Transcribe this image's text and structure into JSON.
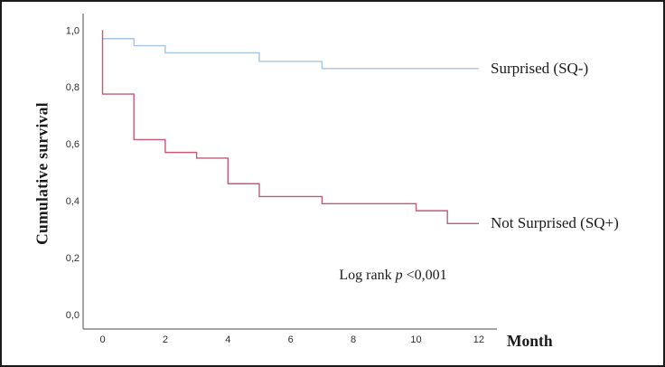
{
  "figure": {
    "y_axis_title": "Cumulative survival",
    "x_axis_title": "Month",
    "log_rank": {
      "prefix": "Log rank",
      "p_symbol": "p",
      "value": "<0,001"
    }
  },
  "chart_data": {
    "type": "line",
    "subtype": "kaplan-meier-step",
    "title": "",
    "xlabel": "Month",
    "ylabel": "Cumulative survival",
    "xlim": [
      0,
      12
    ],
    "ylim": [
      0.0,
      1.0
    ],
    "grid": false,
    "legend_position": "right-of-line-end",
    "x_tick_values": [
      0,
      2,
      4,
      6,
      8,
      10,
      12
    ],
    "x_tick_labels": [
      "0",
      "2",
      "4",
      "6",
      "8",
      "10",
      "12"
    ],
    "y_tick_values": [
      0.0,
      0.2,
      0.4,
      0.6,
      0.8,
      1.0
    ],
    "y_tick_labels": [
      "0,0",
      "0,2",
      "0,4",
      "0,6",
      "0,8",
      "1,0"
    ],
    "annotation": "Log rank p <0,001",
    "axis_color": "#868686",
    "series": [
      {
        "name": "Surprised (SQ-)",
        "color": "#a6c5e2",
        "steps": [
          [
            0,
            0.97
          ],
          [
            1,
            0.945
          ],
          [
            2,
            0.92
          ],
          [
            5,
            0.89
          ],
          [
            7,
            0.865
          ]
        ],
        "end_x": 12
      },
      {
        "name": "Not Surprised (SQ+)",
        "color": "#c25b76",
        "drop_from": 1.0,
        "steps": [
          [
            0,
            0.775
          ],
          [
            1,
            0.615
          ],
          [
            2,
            0.57
          ],
          [
            3,
            0.55
          ],
          [
            4,
            0.46
          ],
          [
            5,
            0.415
          ],
          [
            7,
            0.39
          ],
          [
            10,
            0.365
          ],
          [
            11,
            0.32
          ]
        ],
        "end_x": 12
      }
    ]
  }
}
